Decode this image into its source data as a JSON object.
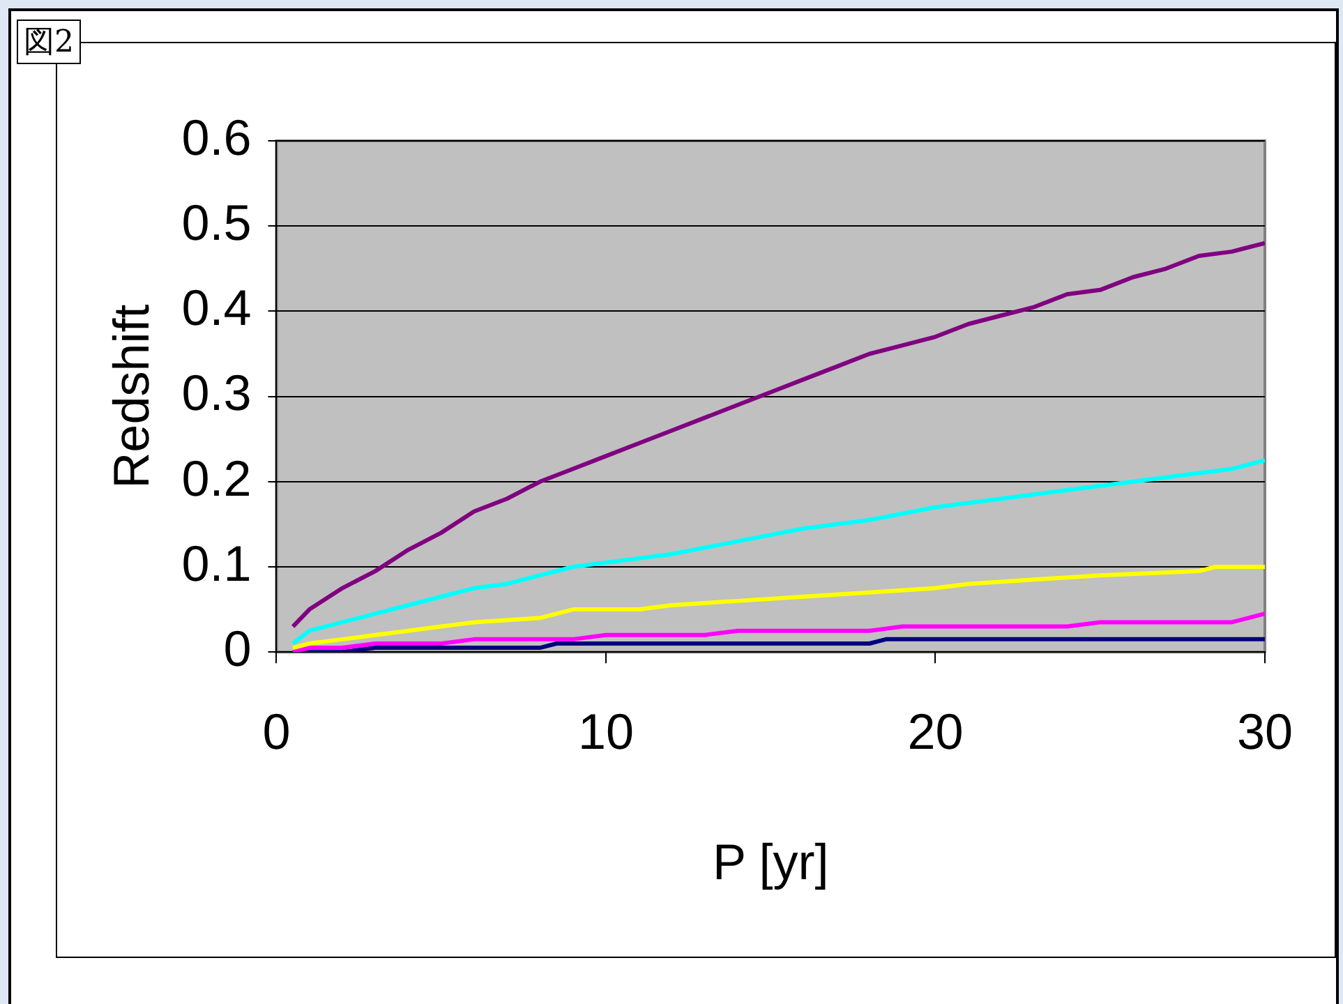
{
  "chart_data": {
    "type": "line",
    "title": "図2",
    "xlabel": "P [yr]",
    "ylabel": "Redshift",
    "xlim": [
      0,
      30
    ],
    "xticks": [
      0,
      10,
      20,
      30
    ],
    "ylim": [
      0,
      0.6
    ],
    "yticks": [
      0,
      0.1,
      0.2,
      0.3,
      0.4,
      0.5,
      0.6
    ],
    "grid": "y",
    "legend": false,
    "marker": "none",
    "line_style": "solid",
    "series": [
      {
        "color": "#800080",
        "x": [
          0.5,
          1,
          2,
          3,
          4,
          5,
          6,
          7,
          8,
          9,
          10,
          11,
          12,
          13,
          14,
          15,
          16,
          17,
          18,
          19,
          20,
          21,
          22,
          23,
          24,
          25,
          26,
          27,
          28,
          29,
          30
        ],
        "values": [
          0.03,
          0.05,
          0.075,
          0.095,
          0.12,
          0.14,
          0.165,
          0.18,
          0.2,
          0.215,
          0.23,
          0.245,
          0.26,
          0.275,
          0.29,
          0.305,
          0.32,
          0.335,
          0.35,
          0.36,
          0.37,
          0.385,
          0.395,
          0.405,
          0.42,
          0.425,
          0.44,
          0.45,
          0.465,
          0.47,
          0.48
        ]
      },
      {
        "color": "#00ffff",
        "x": [
          0.5,
          1,
          2,
          3,
          4,
          5,
          6,
          7,
          8,
          9,
          10,
          12,
          14,
          16,
          18,
          20,
          22,
          24,
          26,
          28,
          29,
          30
        ],
        "values": [
          0.01,
          0.025,
          0.035,
          0.045,
          0.055,
          0.065,
          0.075,
          0.08,
          0.09,
          0.1,
          0.105,
          0.115,
          0.13,
          0.145,
          0.155,
          0.17,
          0.18,
          0.19,
          0.2,
          0.21,
          0.215,
          0.225
        ]
      },
      {
        "color": "#ffff00",
        "x": [
          0.5,
          1,
          2,
          3,
          4,
          5,
          6,
          8,
          9,
          11,
          12,
          14,
          16,
          18,
          20,
          21,
          23,
          25,
          28,
          28.5,
          30
        ],
        "values": [
          0.005,
          0.01,
          0.015,
          0.02,
          0.025,
          0.03,
          0.035,
          0.04,
          0.05,
          0.05,
          0.055,
          0.06,
          0.065,
          0.07,
          0.075,
          0.08,
          0.085,
          0.09,
          0.095,
          0.1,
          0.1
        ]
      },
      {
        "color": "#ff00ff",
        "x": [
          0.5,
          1,
          2,
          3,
          5,
          6,
          9,
          10,
          13,
          14,
          18,
          19,
          24,
          25,
          29,
          30
        ],
        "values": [
          0,
          0.005,
          0.005,
          0.01,
          0.01,
          0.015,
          0.015,
          0.02,
          0.02,
          0.025,
          0.025,
          0.03,
          0.03,
          0.035,
          0.035,
          0.045
        ]
      },
      {
        "color": "#000080",
        "x": [
          0.5,
          2,
          3,
          8,
          8.5,
          18,
          18.5,
          30
        ],
        "values": [
          0,
          0,
          0.005,
          0.005,
          0.01,
          0.01,
          0.015,
          0.015
        ]
      }
    ]
  }
}
